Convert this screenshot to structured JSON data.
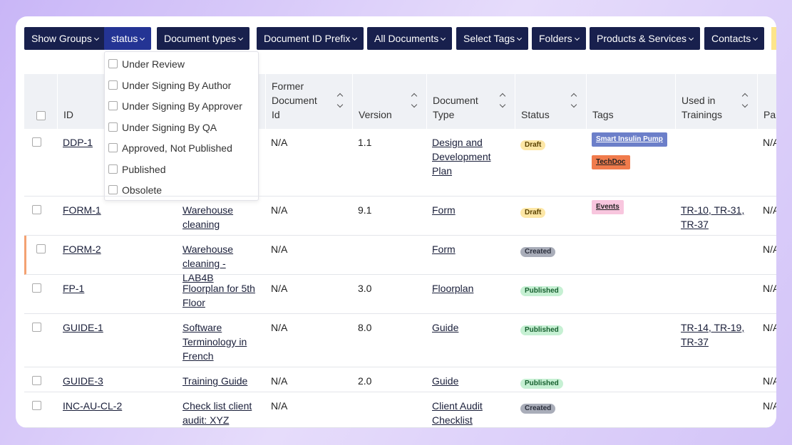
{
  "toolbar": {
    "buttons": [
      "Show Groups",
      "status",
      "Document types",
      "Document ID Prefix",
      "All Documents",
      "Select Tags",
      "Folders",
      "Products & Services",
      "Contacts"
    ]
  },
  "dropdown": {
    "options": [
      "Under Review",
      "Under Signing By Author",
      "Under Signing By Approver",
      "Under Signing By QA",
      "Approved, Not Published",
      "Published",
      "Obsolete"
    ]
  },
  "table": {
    "headers": [
      "ID",
      "Former Document Id",
      "Version",
      "Document Type",
      "Status",
      "Tags",
      "Used in Trainings",
      "Pa Do"
    ],
    "rows": [
      {
        "id": "DDP-1",
        "former": "N/A",
        "version": "1.1",
        "type": "Design and Development Plan",
        "status": "Draft",
        "tags": [
          "Smart Insulin Pump",
          "TechDoc"
        ],
        "last": "N/A"
      },
      {
        "id": "FORM-1",
        "title": "Warehouse cleaning",
        "former": "N/A",
        "version": "9.1",
        "type": "Form",
        "status": "Draft",
        "tags": [
          "Events"
        ],
        "trainings": [
          "TR-10",
          "TR-31",
          "TR-37"
        ],
        "last": "N/A"
      },
      {
        "id": "FORM-2",
        "title": "Warehouse cleaning - LAB4B",
        "former": "N/A",
        "type": "Form",
        "status": "Created",
        "last": "N/A"
      },
      {
        "id": "FP-1",
        "title": "Floorplan for 5th Floor",
        "former": "N/A",
        "version": "3.0",
        "type": "Floorplan",
        "status": "Published",
        "last": "N/A"
      },
      {
        "id": "GUIDE-1",
        "title": "Software Terminology in French",
        "former": "N/A",
        "version": "8.0",
        "type": "Guide",
        "status": "Published",
        "trainings": [
          "TR-14",
          "TR-19",
          "TR-37"
        ],
        "last": "N/A"
      },
      {
        "id": "GUIDE-3",
        "title": "Training Guide",
        "former": "N/A",
        "version": "2.0",
        "type": "Guide",
        "status": "Published",
        "last": "N/A"
      },
      {
        "id": "INC-AU-CL-2",
        "title": "Check list client audit: XYZ",
        "former": "N/A",
        "type": "Client Audit Checklist",
        "status": "Created",
        "last": "N/A"
      }
    ]
  }
}
